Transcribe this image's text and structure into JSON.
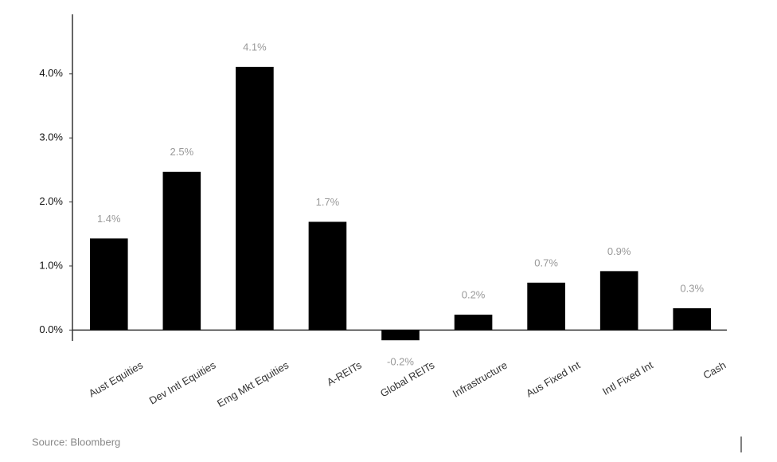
{
  "chart_data": {
    "type": "bar",
    "categories": [
      "Aust Equities",
      "Dev Intl Equities",
      "Emg Mkt Equities",
      "A-REITs",
      "Global REITs",
      "Infrastructure",
      "Aus Fixed Int",
      "Intl Fixed Int",
      "Cash"
    ],
    "values": [
      1.43,
      2.47,
      4.11,
      1.69,
      -0.16,
      0.24,
      0.74,
      0.92,
      0.34
    ],
    "value_labels": [
      "1.4%",
      "2.5%",
      "4.1%",
      "1.7%",
      "-0.2%",
      "0.2%",
      "0.7%",
      "0.9%",
      "0.3%"
    ],
    "color": "#000000",
    "ylim": [
      -0.17,
      4.93
    ],
    "yticks": [
      {
        "value": 0,
        "label": "0.0%"
      },
      {
        "value": 1,
        "label": "1.0%"
      },
      {
        "value": 2,
        "label": "2.0%"
      },
      {
        "value": 3,
        "label": "3.0%"
      },
      {
        "value": 4,
        "label": "4.0%"
      }
    ],
    "grid": false,
    "source": "Source: Bloomberg"
  }
}
